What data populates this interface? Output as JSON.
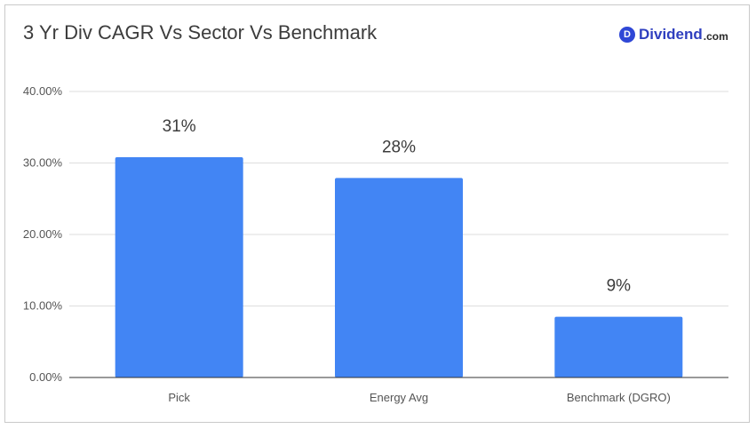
{
  "header": {
    "title": "3 Yr Div CAGR Vs Sector Vs Benchmark"
  },
  "brand": {
    "mark": "D",
    "name": "Dividend",
    "suffix": ".com",
    "color": "#2f47d6"
  },
  "chart_data": {
    "type": "bar",
    "title": "3 Yr Div CAGR Vs Sector Vs Benchmark",
    "xlabel": "",
    "ylabel": "",
    "categories": [
      "Pick",
      "Energy Avg",
      "Benchmark (DGRO)"
    ],
    "values": [
      30.8,
      27.9,
      8.5
    ],
    "data_labels": [
      "31%",
      "28%",
      "9%"
    ],
    "ylim": [
      0,
      40
    ],
    "yticks": [
      0,
      10,
      20,
      30,
      40
    ],
    "ytick_labels": [
      "0.00%",
      "10.00%",
      "20.00%",
      "30.00%",
      "40.00%"
    ],
    "grid": true,
    "legend": "none",
    "bar_color": "#4285f4"
  }
}
